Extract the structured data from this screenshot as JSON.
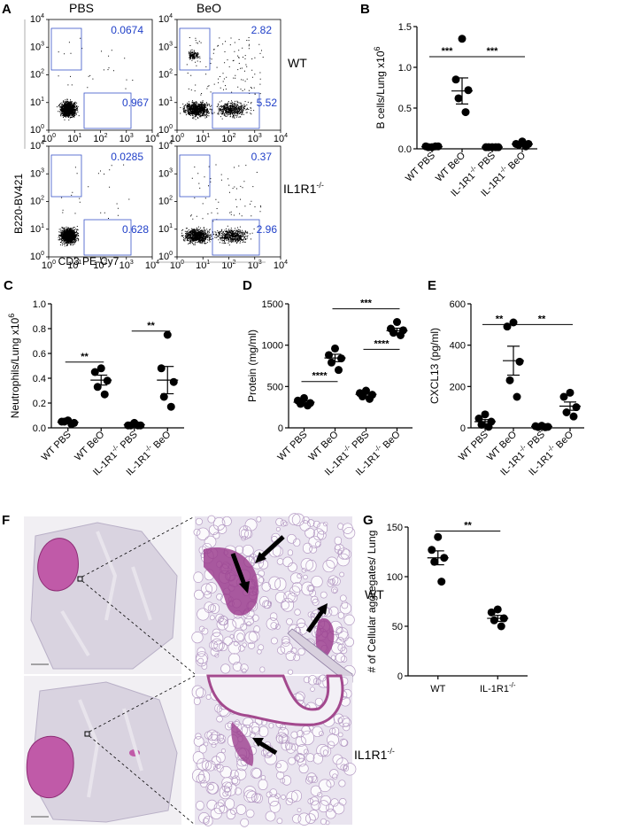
{
  "panels": {
    "A": {
      "letter": "A",
      "columns": [
        "PBS",
        "BeO"
      ],
      "rows": [
        "WT",
        "IL1R1"
      ],
      "row_superscript": "-/-",
      "x_axis": "CD3 PE-Cy7",
      "y_axis": "B220-BV421",
      "decade_labels": [
        "10",
        "10",
        "10",
        "10",
        "10"
      ],
      "decade_exps": [
        "0",
        "1",
        "2",
        "3",
        "4"
      ],
      "gate_values": [
        {
          "top": "0.0674",
          "bottom": "0.967"
        },
        {
          "top": "2.82",
          "bottom": "5.52"
        },
        {
          "top": "0.0285",
          "bottom": "0.628"
        },
        {
          "top": "0.37",
          "bottom": "2.96"
        }
      ]
    },
    "F": {
      "letter": "F",
      "rows": [
        "WT",
        "IL1R1"
      ],
      "row_superscript": "-/-"
    }
  },
  "colors": {
    "gate": "#3b55c9",
    "gate_text": "#1f3fc8",
    "tissue_background": "#dcd6e3",
    "tissue_stain": "#b24a9b",
    "zoom_background": "#e9e4ef"
  },
  "icons": [
    "arrow-icon"
  ],
  "chart_data": [
    {
      "id": "B",
      "letter": "B",
      "type": "scatter",
      "ylabel": "B cells/Lung x10",
      "ylabel_exp": "6",
      "ylim": [
        0,
        1.5
      ],
      "yticks": [
        "0.0",
        "0.5",
        "1.0",
        "1.5"
      ],
      "tick_values": [
        0,
        0.5,
        1.0,
        1.5
      ],
      "categories": [
        "WT PBS",
        "WT BeO",
        "IL-1R1",
        "IL-1R1"
      ],
      "category_suffix": [
        "",
        "",
        " PBS",
        " BeO"
      ],
      "category_super": [
        "",
        "",
        "-/-",
        "-/-"
      ],
      "groups": [
        [
          0.02,
          0.03,
          0.03,
          0.02,
          0.03
        ],
        [
          1.35,
          0.85,
          0.72,
          0.62,
          0.45
        ],
        [
          0.02,
          0.02,
          0.02,
          0.02,
          0.02
        ],
        [
          0.09,
          0.06,
          0.06,
          0.05,
          0.03
        ]
      ],
      "means": [
        0.025,
        0.71,
        0.02,
        0.058
      ],
      "sems": [
        0.003,
        0.16,
        0.001,
        0.01
      ],
      "significance": [
        {
          "from": 0,
          "to": 1,
          "value": 1.13,
          "label": "***"
        },
        {
          "from": 1,
          "to": 3,
          "value": 1.13,
          "label": "***"
        }
      ]
    },
    {
      "id": "C",
      "letter": "C",
      "type": "scatter",
      "ylabel": "Neutrophils/Lung x10",
      "ylabel_exp": "6",
      "ylim": [
        0,
        1.0
      ],
      "yticks": [
        "0.0",
        "0.2",
        "0.4",
        "0.6",
        "0.8",
        "1.0"
      ],
      "tick_values": [
        0,
        0.2,
        0.4,
        0.6,
        0.8,
        1.0
      ],
      "categories": [
        "WT PBS",
        "WT BeO",
        "IL-1R1",
        "IL-1R1"
      ],
      "category_suffix": [
        "",
        "",
        " PBS",
        " BeO"
      ],
      "category_super": [
        "",
        "",
        "-/-",
        "-/-"
      ],
      "groups": [
        [
          0.06,
          0.05,
          0.04,
          0.05,
          0.03
        ],
        [
          0.48,
          0.45,
          0.38,
          0.33,
          0.27
        ],
        [
          0.04,
          0.02,
          0.02,
          0.02,
          0.02
        ],
        [
          0.75,
          0.48,
          0.37,
          0.25,
          0.17
        ]
      ],
      "means": [
        0.045,
        0.385,
        0.025,
        0.385
      ],
      "sems": [
        0.005,
        0.04,
        0.004,
        0.11
      ],
      "significance": [
        {
          "from": 0,
          "to": 1,
          "value": 0.53,
          "label": "**"
        },
        {
          "from": 2,
          "to": 3,
          "value": 0.78,
          "label": "**"
        }
      ]
    },
    {
      "id": "D",
      "letter": "D",
      "type": "scatter",
      "ylabel": "Protein (mg/ml)",
      "ylabel_exp": "",
      "ylim": [
        0,
        1500
      ],
      "yticks": [
        "0",
        "500",
        "1000",
        "1500"
      ],
      "tick_values": [
        0,
        500,
        1000,
        1500
      ],
      "categories": [
        "WT PBS",
        "WT BeO",
        "IL-1R1",
        "IL-1R1"
      ],
      "category_suffix": [
        "",
        "",
        " PBS",
        " BeO"
      ],
      "category_super": [
        "",
        "",
        "-/-",
        "-/-"
      ],
      "groups": [
        [
          360,
          330,
          300,
          290,
          270
        ],
        [
          960,
          880,
          840,
          790,
          700
        ],
        [
          450,
          420,
          400,
          380,
          350
        ],
        [
          1280,
          1200,
          1180,
          1150,
          1120
        ]
      ],
      "means": [
        310,
        845,
        405,
        1175
      ],
      "sems": [
        18,
        45,
        18,
        30
      ],
      "significance": [
        {
          "from": 0,
          "to": 1,
          "value": 560,
          "label": "****"
        },
        {
          "from": 1,
          "to": 3,
          "value": 1440,
          "label": "***"
        },
        {
          "from": 2,
          "to": 3,
          "value": 950,
          "label": "****"
        }
      ]
    },
    {
      "id": "E",
      "letter": "E",
      "type": "scatter",
      "ylabel": "CXCL13 (pg/ml)",
      "ylabel_exp": "",
      "ylim": [
        0,
        600
      ],
      "yticks": [
        "0",
        "200",
        "400",
        "600"
      ],
      "tick_values": [
        0,
        200,
        400,
        600
      ],
      "categories": [
        "WT PBS",
        "WT BeO",
        "IL-1R1",
        "IL-1R1"
      ],
      "category_suffix": [
        "",
        "",
        " PBS",
        " BeO"
      ],
      "category_super": [
        "",
        "",
        "-/-",
        "-/-"
      ],
      "groups": [
        [
          65,
          45,
          30,
          15,
          5
        ],
        [
          510,
          490,
          320,
          230,
          150
        ],
        [
          10,
          8,
          5,
          4,
          3
        ],
        [
          170,
          150,
          100,
          75,
          55
        ]
      ],
      "means": [
        30,
        325,
        7,
        105
      ],
      "sems": [
        10,
        70,
        2,
        20
      ],
      "significance": [
        {
          "from": 0,
          "to": 1,
          "value": 500,
          "label": "**"
        },
        {
          "from": 1,
          "to": 3,
          "value": 500,
          "label": "**"
        }
      ]
    },
    {
      "id": "G",
      "letter": "G",
      "type": "scatter",
      "ylabel": "# of Cellular aggregates/ Lung",
      "ylabel_exp": "",
      "ylim": [
        0,
        150
      ],
      "yticks": [
        "0",
        "50",
        "100",
        "150"
      ],
      "tick_values": [
        0,
        50,
        100,
        150
      ],
      "categories": [
        "WT",
        "IL-1R1"
      ],
      "category_suffix": [
        "",
        ""
      ],
      "category_super": [
        "",
        "-/-"
      ],
      "groups": [
        [
          140,
          127,
          119,
          115,
          95
        ],
        [
          67,
          64,
          58,
          56,
          50
        ]
      ],
      "means": [
        119,
        58
      ],
      "sems": [
        7,
        3
      ],
      "significance": [
        {
          "from": 0,
          "to": 1,
          "value": 146,
          "label": "**"
        }
      ]
    }
  ]
}
